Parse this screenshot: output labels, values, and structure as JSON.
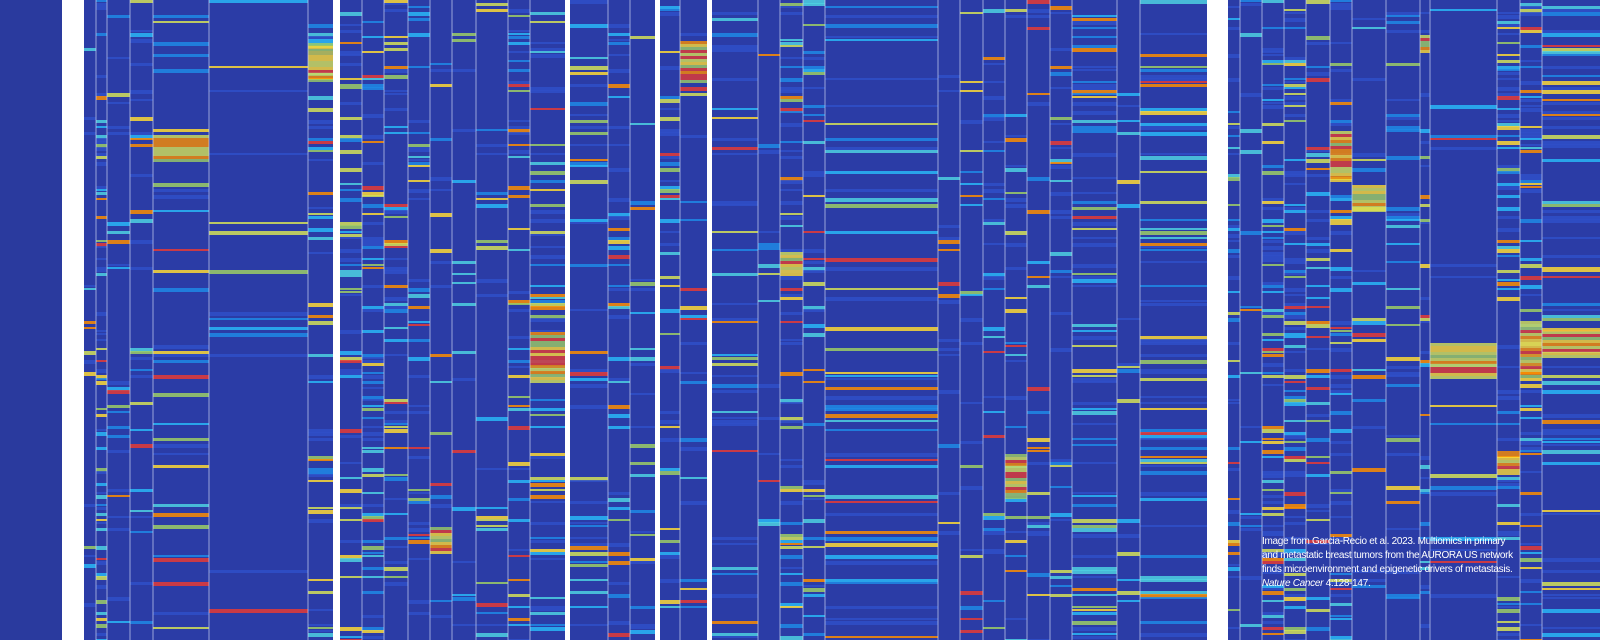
{
  "caption": {
    "lines": [
      "Image from Garcia-Recio et al. 2023. Multiomics in primary",
      "and metastatic breast tumors from the AURORA US network",
      "finds microenvironment and epigenetic drivers of metastasis."
    ],
    "journal": "Nature Cancer",
    "citation": " 4:128-147."
  }
}
